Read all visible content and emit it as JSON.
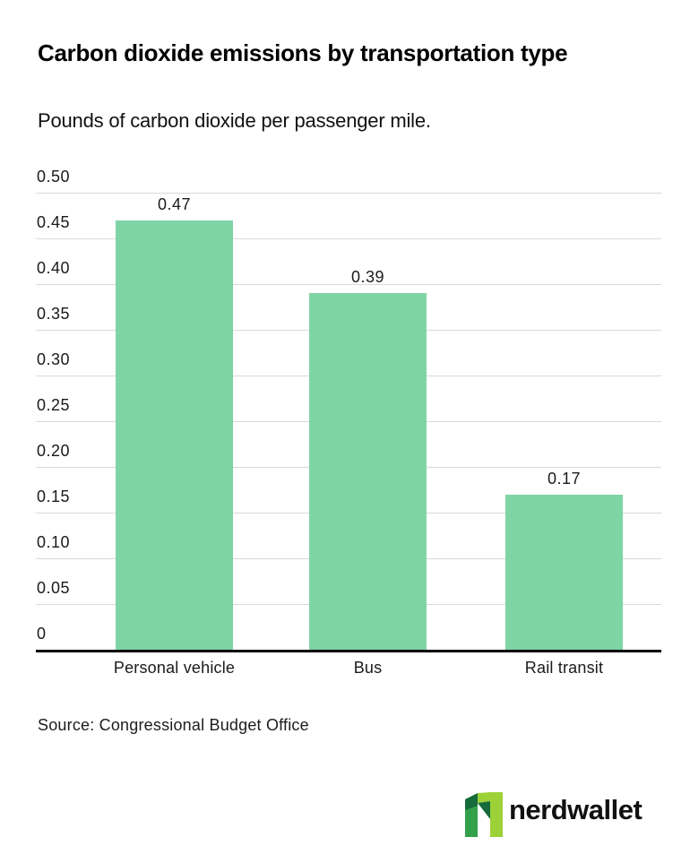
{
  "chart_data": {
    "type": "bar",
    "title": "Carbon dioxide emissions by transportation type",
    "subtitle": "Pounds of carbon dioxide per passenger mile.",
    "categories": [
      "Personal vehicle",
      "Bus",
      "Rail transit"
    ],
    "values": [
      0.47,
      0.39,
      0.17
    ],
    "value_labels": [
      "0.47",
      "0.39",
      "0.17"
    ],
    "xlabel": "",
    "ylabel": "",
    "ylim": [
      0,
      0.5
    ],
    "yticks": [
      {
        "value": 0.5,
        "label": "0.50"
      },
      {
        "value": 0.45,
        "label": "0.45"
      },
      {
        "value": 0.4,
        "label": "0.40"
      },
      {
        "value": 0.35,
        "label": "0.35"
      },
      {
        "value": 0.3,
        "label": "0.30"
      },
      {
        "value": 0.25,
        "label": "0.25"
      },
      {
        "value": 0.2,
        "label": "0.20"
      },
      {
        "value": 0.15,
        "label": "0.15"
      },
      {
        "value": 0.1,
        "label": "0.10"
      },
      {
        "value": 0.05,
        "label": "0.05"
      },
      {
        "value": 0,
        "label": "0"
      }
    ],
    "grid": "horizontal",
    "legend": "none",
    "bar_color": "#7FD4A6",
    "gridline_color": "#d9d9d9",
    "axis_line_color": "#000000"
  },
  "footer": {
    "source": "Source: Congressional Budget Office",
    "brand": {
      "wordmark": "nerdwallet",
      "colors": {
        "lime": "#9CD137",
        "wordmark_lime": "#8FC93C",
        "medium": "#33A04A",
        "dark": "#156B3B"
      }
    }
  }
}
